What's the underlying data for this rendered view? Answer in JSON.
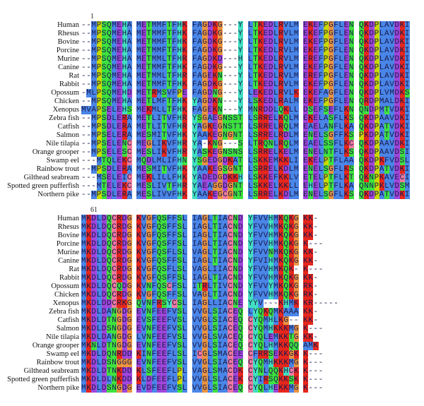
{
  "species": [
    "Human",
    "Rhesus",
    "Bovine",
    "Porcine",
    "Murine",
    "Canine",
    "Rat",
    "Rabbit",
    "Opossum",
    "Chicken",
    "Xenopus",
    "Zebra fish",
    "Catfish",
    "Salmon",
    "Nile tilapia",
    "Orange grooper",
    "Swamp eel",
    "Rainbow trout",
    "Gilthead seabream",
    "Spotted green pufferfish",
    "Northern pike"
  ],
  "residue_colors": {
    "hydrophobic": "#4a86e8",
    "charged_positive": "#e8261c",
    "acidic": "#a046dc",
    "polar": "#3ee23e",
    "glycine": "#ec9440",
    "proline": "#c9d900",
    "aromatic_his": "#40e0c0",
    "cysteine": "#ee7aa0"
  },
  "blocks": [
    {
      "start": "1",
      "rows": [
        [
          "--MPSQMEHA",
          "METMMFTFHK",
          "FAGDKG---Y",
          "LTKEDLRVLM",
          "EKEFPGFLEN",
          "QKDPLAVDKI"
        ],
        [
          "--MPSQMEHA",
          "METMMFTFHK",
          "FAGDKG---Y",
          "LTKEDLRVLM",
          "EKEFPGFLEN",
          "QKDPLAVDKI"
        ],
        [
          "--MPSQMEHA",
          "METMMFTFHK",
          "FAGDKG---Y",
          "LTKEDLRVLM",
          "EKEFPGFLEN",
          "QKDPLAVDKI"
        ],
        [
          "--MPSQMEHA",
          "METMMFTFHK",
          "FAGDKG---Y",
          "LTKEDLRVLM",
          "EKEFPGFLEN",
          "QKDPLAVDKI"
        ],
        [
          "--MPSQMEHA",
          "METMMLTFHR",
          "FAGDKD---H",
          "LTKEDLRVLM",
          "EREFPGFLEN",
          "QKDPLAVDKI"
        ],
        [
          "--MPSQMEHA",
          "METMMFTFHK",
          "FAGDKG---Y",
          "LTKEDLRVLM",
          "EKEFPGFLEN",
          "QKDPLAVDKI"
        ],
        [
          "--MPSQMEHA",
          "METMMLTFHR",
          "FAGEKN---Y",
          "LTKEDLRVLM",
          "EREFPGFLEN",
          "QKDPLAVDKI"
        ],
        [
          "--MPSQMEHA",
          "METMMFTFHK",
          "FAGDKG---Y",
          "LTKEDLRVLM",
          "EKEFPGFLEN",
          "QKDPLAVDKI"
        ],
        [
          "-MLPSQMEHD",
          "METRMSVFPE",
          "FAGDNG---Y",
          "LEKEDLRVLK",
          "EKEFAGFLEN",
          "QKDPLVMDKS"
        ],
        [
          "--MPSQMEHA",
          "METLMFTFHK",
          "YAGDKN---Y",
          "LSKEDLRALM",
          "EKEFPGFLEN",
          "QRDPMALDKI"
        ],
        [
          "MVAPSELEHS",
          "MEKMLLTFHK",
          "FAGEKN---Y",
          "MNRDDLQKLL",
          "DSEFSEFLKN",
          "QNDPMTVDKI"
        ],
        [
          "--MPSDLERA",
          "METLITVFHR",
          "YSGAEGNSST",
          "LSRRELKQLM",
          "EKELASFLKS",
          "QKDPAAVDKI"
        ],
        [
          "--MPSDLERA",
          "METLITVFHR",
          "YAGKEGNSTT",
          "LSRRELRQLM",
          "EAELANFLKA",
          "QKDPATVDKI"
        ],
        [
          "--MPSELERA",
          "MESMITVFHK",
          "YAAKEGNGNT",
          "LSRRELRDLM",
          "ENELSGFFKS",
          "PKDPATVDKI"
        ],
        [
          "--MPSELENC",
          "MEGLIKVFHR",
          "YA-KNG---S",
          "LTRQNLRQLM",
          "EAELSSFLKC",
          "QKDPAAVDKI"
        ],
        [
          "--MPSELESC",
          "MESLIKVFHR",
          "YASKEGNSNS",
          "LSRRELKELM",
          "ENELNTFLKS",
          "QKDPAAVDSI"
        ],
        [
          "---MTQLEKC",
          "MQDLMLIFHN",
          "YSGEDGDKAT",
          "LSKKEMKKLI",
          "EKELPTFLAA",
          "QKDPKFVDSL"
        ],
        [
          "--MPSDLERA",
          "MESMITVFHK",
          "YAAKEGSGNT",
          "LSRRELKDLM",
          "ENELSGFLKS",
          "QKDPATVDKI"
        ],
        [
          "---MSELEIC",
          "MEKLILLFHK",
          "YADEDGDKKH",
          "LSKKEFKKLV",
          "ETELPTFLKT",
          "QKNPKAVECI"
        ],
        [
          "---MTELEKC",
          "MESLIVTFHR",
          "YAEAGGDGNT",
          "LSKKELKKLL",
          "EHELPTFLKA",
          "QNNPKLVDSM"
        ],
        [
          "--MPSDLERA",
          "MESLIVVFHK",
          "YAAKEGCGNT",
          "LSRRELKDLM",
          "ENELSGFLKS",
          "QKDPATVDKI"
        ]
      ]
    },
    {
      "start": "61",
      "rows": [
        [
          "MKDLDQCRDG",
          "KVGFQSFFSL",
          "IAGLTIACND",
          "YFVVHMKQKG",
          "KK-"
        ],
        [
          "MKDLDQCRDG",
          "KVGFQSFFSL",
          "IAGLTIACND",
          "YFVVHMKQKG",
          "KK-"
        ],
        [
          "MKDLDQCRDG",
          "KVGFQSFFSL",
          "IAGLTIACND",
          "YFVVHMKQKG",
          "KK-"
        ],
        [
          "MKDLDQCRDG",
          "KVGFQSFFSL",
          "IAGLTIACND",
          "YFVVHMKQKG",
          "K---"
        ],
        [
          "MKDLDQCRDG",
          "KVGFQSFLSL",
          "VAGLTIACND",
          "YFVVNMKQKG",
          "KK-"
        ],
        [
          "MKDLDQCRDG",
          "KVGFQSFFSL",
          "IAGLTIACND",
          "YFVIHMKQKG",
          "KK-"
        ],
        [
          "MKDLDQCRDG",
          "KVGFQSFLSL",
          "VAGLIIACND",
          "YFVVHMKQK-",
          "K---"
        ],
        [
          "MKDLDQCRDG",
          "KVGFQSFFSL",
          "IAGLTIACND",
          "YFVVHMKQKG",
          "KK-"
        ],
        [
          "MKDLDQCQDG",
          "KVNFQSCFSL",
          "ITRLTIVCND",
          "YFVVYMKQKG",
          "RK-"
        ],
        [
          "MKDLDQCRDG",
          "KVGFQSFFSL",
          "VAGLTIACND",
          "YFVVHMKQKG",
          "RK-"
        ],
        [
          "MKDLDDCRKG",
          "QVNFRSYCSL",
          "IAGLLIACNE",
          "YYV---KHMK",
          "KR-----"
        ],
        [
          "MKDLDANGDG",
          "EVNFEEFVSL",
          "VVGLSIACEQ",
          "LYQKQMKAAA",
          "KK-"
        ],
        [
          "MKDLDTNGDG",
          "EVSFEEFVSL",
          "VVGLSIACEQ",
          "CYQMHLKG--",
          "KK-"
        ],
        [
          "MKDLDSNGDG",
          "EVNFEEFVSL",
          "VVGLSIACEQ",
          "CYQMHKKKMG",
          "K---"
        ],
        [
          "MKDLDANGDG",
          "LVNFEEFVSL",
          "VVGLSVACEQ",
          "CYQLEMKKTG",
          "KK-"
        ],
        [
          "MKNLDTNGDG",
          "EVNFEEFVSL",
          "VVGLSIACEQ",
          "CYQLHMKKQQ",
          "AMK"
        ],
        [
          "MKDLDQNRDD",
          "KINFEEFLSL",
          "ICGLSMACEE",
          "CFRRSEKKGK",
          "K---"
        ],
        [
          "MKDLDSNGGG",
          "EVNFEEFVSL",
          "VVGLSIACEQ",
          "CYQMHKKKMG",
          "K---"
        ],
        [
          "MKDLDTNKDD",
          "KLSFEEFLPL",
          "VAGLSMACDK",
          "CYNLQQKHCK",
          "K---"
        ],
        [
          "MKDLDLNKDD",
          "KLDFEEFLPL",
          "VVGLSLACEK",
          "CYIRSQKKSK",
          "K---"
        ],
        [
          "MKDLDSNGDG",
          "EVDFEEFVSL",
          "VVGLSIACEQ",
          "CYQLHEKKMG",
          "K---"
        ]
      ]
    }
  ]
}
